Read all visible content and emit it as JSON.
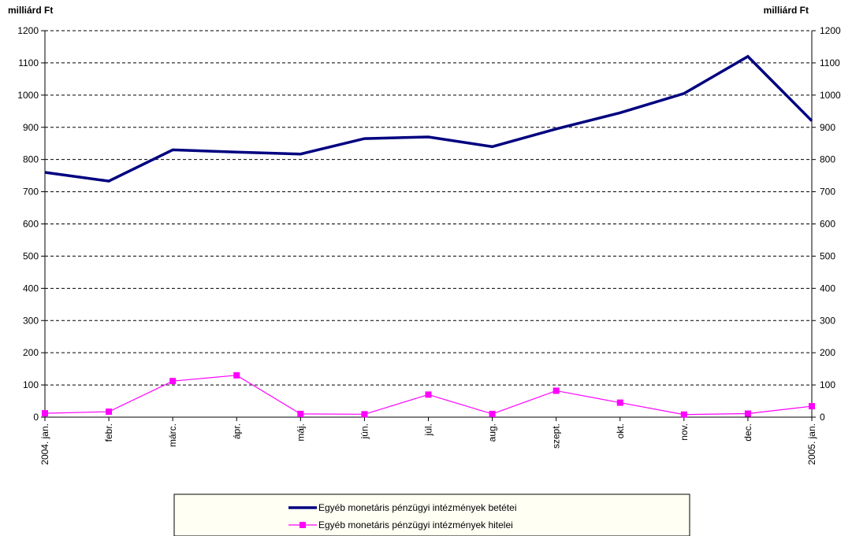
{
  "chart_data": {
    "type": "line",
    "y_label": "milliárd Ft",
    "y2_label": "milliárd Ft",
    "categories": [
      "2004. jan.",
      "febr.",
      "márc.",
      "ápr.",
      "máj.",
      "jún.",
      "júl.",
      "aug.",
      "szept.",
      "okt.",
      "nov.",
      "dec.",
      "2005. jan."
    ],
    "series": [
      {
        "name": "Egyéb monetáris pénzügyi  intézmények betétei",
        "color": "#000080",
        "values": [
          760,
          733,
          830,
          823,
          817,
          865,
          870,
          840,
          895,
          945,
          1005,
          1120,
          920
        ]
      },
      {
        "name": "Egyéb monetáris pénzügyi intézmények hitelei",
        "color": "#ff00ff",
        "marker": "square",
        "values": [
          12,
          17,
          112,
          130,
          10,
          9,
          70,
          10,
          82,
          45,
          8,
          11,
          34
        ]
      }
    ],
    "ylim": [
      0,
      1200
    ],
    "yticks": [
      0,
      100,
      200,
      300,
      400,
      500,
      600,
      700,
      800,
      900,
      1000,
      1100,
      1200
    ],
    "y2lim": [
      0,
      1200
    ],
    "y2ticks": [
      0,
      100,
      200,
      300,
      400,
      500,
      600,
      700,
      800,
      900,
      1000,
      1100,
      1200
    ],
    "grid": true,
    "legend": "bottom"
  }
}
